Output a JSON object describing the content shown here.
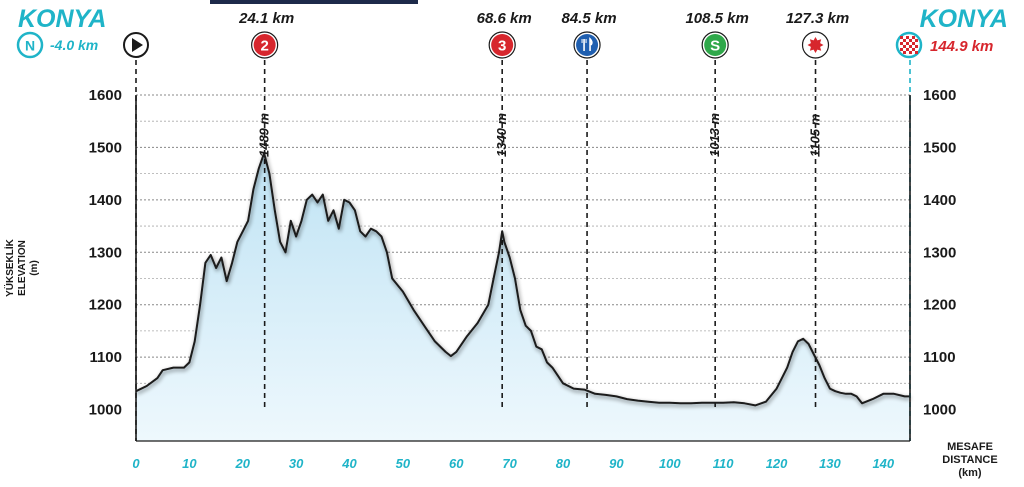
{
  "header": {
    "start_city": "KONYA",
    "finish_city": "KONYA",
    "neutral_symbol": "N",
    "neutral_km": "-4.0 km",
    "finish_km": "144.9 km"
  },
  "markers": [
    {
      "km": 24.1,
      "label": "24.1 km",
      "type": "climb",
      "symbol": "2",
      "color": "#d7262d",
      "altitude_label": "1489 m"
    },
    {
      "km": 68.6,
      "label": "68.6 km",
      "type": "climb",
      "symbol": "3",
      "color": "#d7262d",
      "altitude_label": "1340 m"
    },
    {
      "km": 84.5,
      "label": "84.5 km",
      "type": "feed-zone",
      "symbol": "",
      "color": "#1f5fb0",
      "altitude_label": ""
    },
    {
      "km": 108.5,
      "label": "108.5 km",
      "type": "sprint",
      "symbol": "S",
      "color": "#2fa84a",
      "altitude_label": "1013 m"
    },
    {
      "km": 127.3,
      "label": "127.3 km",
      "type": "bonus",
      "symbol": "",
      "color": "#d7262d",
      "altitude_label": "1105 m"
    }
  ],
  "colors": {
    "teal": "#1fb4c8",
    "finish_red": "#d7262d",
    "profile_line": "#1a1a1a",
    "fill_top": "#bfe3f4",
    "fill_bottom": "#eef8fd"
  },
  "chart_data": {
    "type": "area",
    "y_axis_label_lines": [
      "YÜKSEKLİK",
      "ELEVATION",
      "(m)"
    ],
    "x_axis_label_lines": [
      "MESAFE",
      "DISTANCE",
      "(km)"
    ],
    "xlim": [
      0,
      145
    ],
    "ylim": [
      940,
      1600
    ],
    "x_ticks": [
      0,
      10,
      20,
      30,
      40,
      50,
      60,
      70,
      80,
      90,
      100,
      110,
      120,
      130,
      140
    ],
    "y_ticks": [
      1000,
      1100,
      1200,
      1300,
      1400,
      1500,
      1600
    ],
    "grid": true,
    "x": [
      0,
      2,
      4,
      5,
      7,
      9,
      10,
      11,
      12,
      13,
      14,
      15,
      16,
      17,
      18,
      19,
      20,
      21,
      22,
      23,
      24,
      25,
      26,
      27,
      28,
      29,
      30,
      31,
      32,
      33,
      34,
      35,
      36,
      37,
      38,
      39,
      40,
      41,
      42,
      43,
      44,
      45,
      46,
      47,
      48,
      50,
      52,
      54,
      56,
      58,
      59,
      60,
      62,
      64,
      66,
      67,
      68,
      68.6,
      69,
      70,
      71,
      72,
      73,
      74,
      75,
      76,
      77,
      78,
      80,
      82,
      84,
      86,
      88,
      90,
      92,
      94,
      96,
      98,
      100,
      102,
      104,
      106,
      108,
      110,
      112,
      114,
      116,
      118,
      120,
      122,
      123,
      124,
      125,
      126,
      127,
      128,
      129,
      130,
      131,
      132,
      133,
      134,
      135,
      136,
      138,
      140,
      142,
      144,
      144.9
    ],
    "y": [
      1035,
      1045,
      1060,
      1075,
      1080,
      1080,
      1090,
      1130,
      1200,
      1280,
      1295,
      1270,
      1290,
      1245,
      1280,
      1320,
      1340,
      1360,
      1420,
      1460,
      1489,
      1450,
      1380,
      1320,
      1300,
      1360,
      1330,
      1360,
      1400,
      1410,
      1395,
      1410,
      1360,
      1380,
      1345,
      1400,
      1395,
      1380,
      1340,
      1330,
      1345,
      1340,
      1330,
      1300,
      1250,
      1225,
      1190,
      1160,
      1130,
      1110,
      1102,
      1110,
      1140,
      1165,
      1200,
      1250,
      1300,
      1340,
      1320,
      1290,
      1250,
      1190,
      1160,
      1150,
      1120,
      1115,
      1090,
      1080,
      1050,
      1040,
      1038,
      1030,
      1028,
      1025,
      1020,
      1017,
      1015,
      1013,
      1013,
      1012,
      1012,
      1013,
      1013,
      1013,
      1014,
      1012,
      1008,
      1015,
      1040,
      1080,
      1110,
      1130,
      1135,
      1125,
      1105,
      1085,
      1060,
      1040,
      1035,
      1032,
      1030,
      1030,
      1025,
      1012,
      1020,
      1030,
      1030,
      1025,
      1025
    ]
  }
}
